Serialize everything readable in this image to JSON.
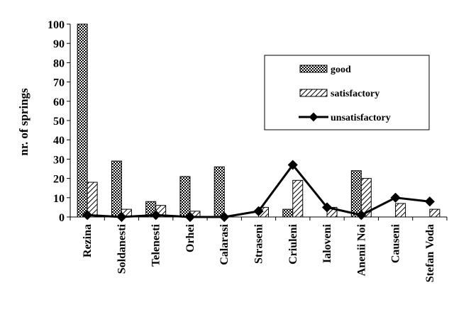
{
  "chart_data": {
    "type": "bar",
    "ylabel": "nr. of springs",
    "ylim": [
      0,
      100
    ],
    "yticks": [
      0,
      10,
      20,
      30,
      40,
      50,
      60,
      70,
      80,
      90,
      100
    ],
    "categories": [
      "Rezina",
      "Soldanesti",
      "Telenesti",
      "Orhei",
      "Calarasi",
      "Straseni",
      "Criuleni",
      "Ialoveni",
      "Anenii Noi",
      "Causeni",
      "Stefan Voda"
    ],
    "series": [
      {
        "name": "good",
        "kind": "bar",
        "pattern": "dotted",
        "values": [
          100,
          29,
          8,
          21,
          26,
          0,
          4,
          0,
          24,
          0,
          0
        ]
      },
      {
        "name": "satisfactory",
        "kind": "bar",
        "pattern": "hatched",
        "values": [
          18,
          4,
          6,
          3,
          0,
          5,
          19,
          5,
          20,
          7,
          4
        ]
      },
      {
        "name": "unsatisfactory",
        "kind": "line",
        "marker": "diamond",
        "values": [
          1,
          0,
          1,
          0,
          0,
          3,
          27,
          5,
          1,
          10,
          8
        ]
      }
    ],
    "legend_position": "right",
    "grid": false
  }
}
